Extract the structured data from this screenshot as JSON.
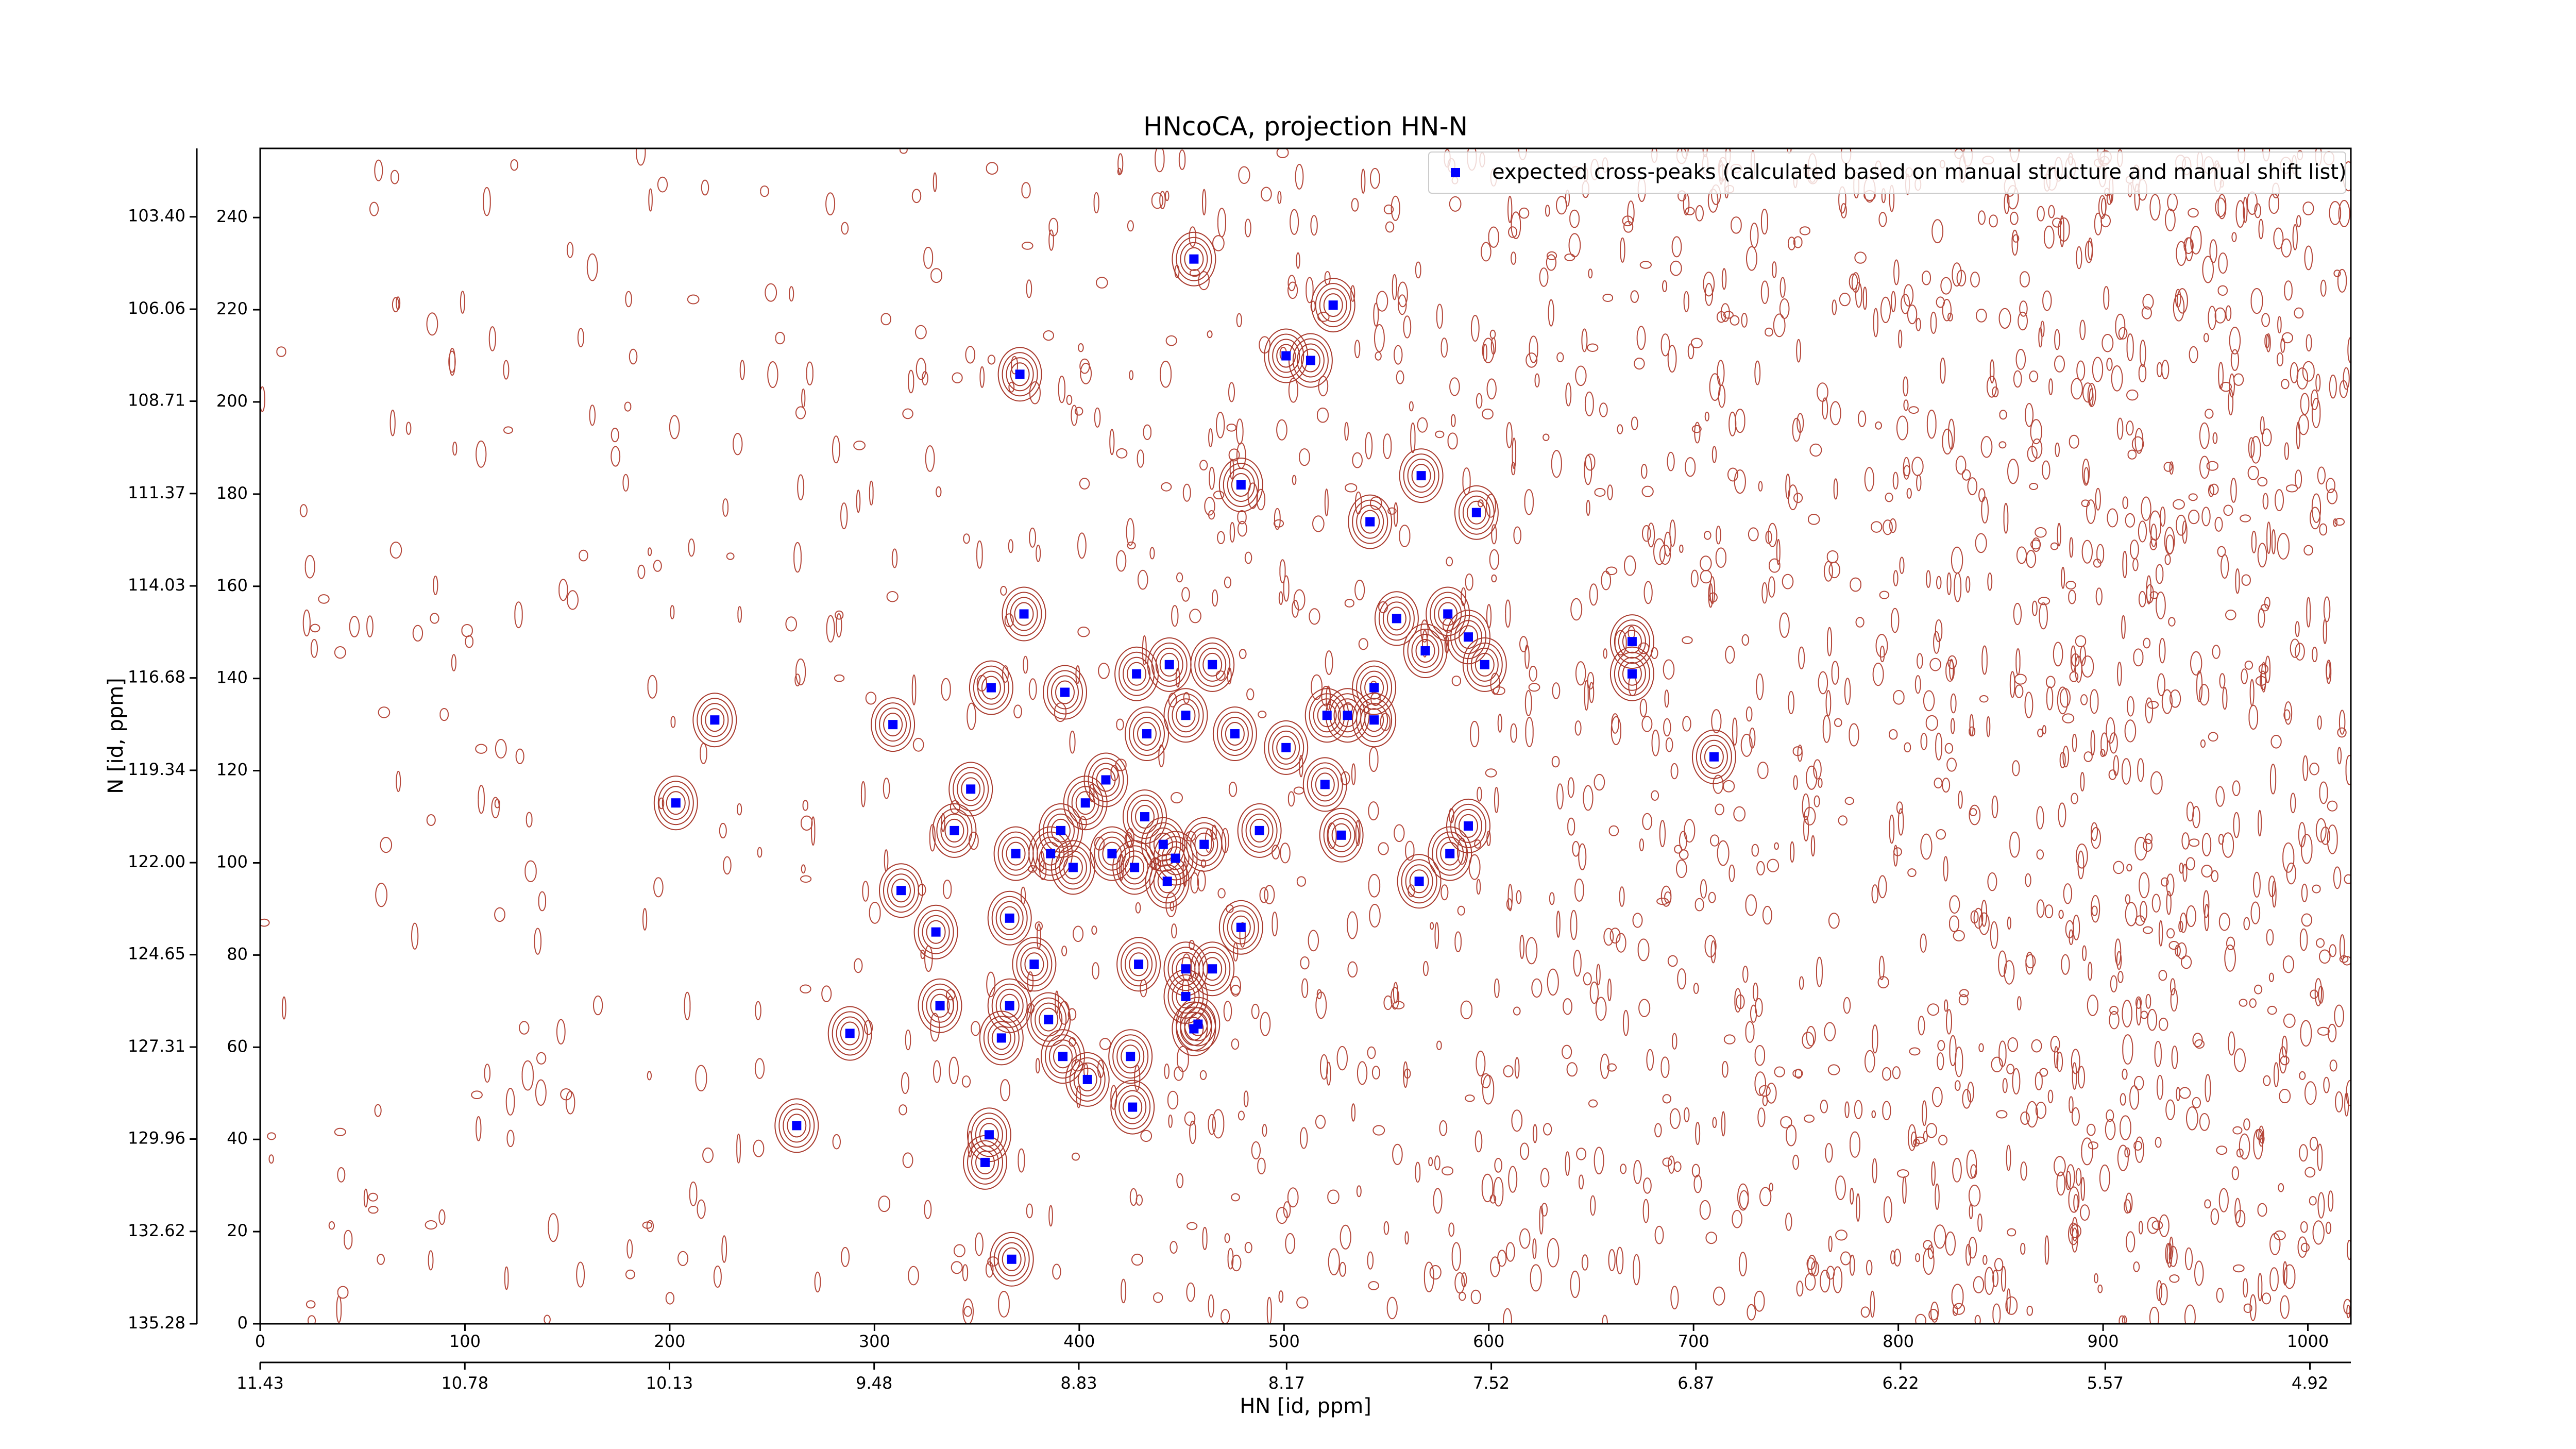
{
  "chart_data": {
    "type": "scatter",
    "title": "HNcoCA, projection HN-N",
    "x_label": "HN [id, ppm]",
    "y_label": "N [id, ppm]",
    "x": [
      456,
      524,
      501,
      513,
      371,
      479,
      567,
      594,
      542,
      373,
      555,
      580,
      590,
      569,
      670,
      598,
      670,
      444,
      465,
      428,
      357,
      393,
      544,
      452,
      521,
      531,
      544,
      309,
      222,
      433,
      476,
      501,
      710,
      413,
      520,
      347,
      403,
      203,
      432,
      339,
      391,
      488,
      590,
      528,
      441,
      461,
      369,
      386,
      416,
      447,
      581,
      397,
      427,
      443,
      566,
      313,
      366,
      479,
      330,
      429,
      378,
      452,
      465,
      452,
      332,
      366,
      385,
      458,
      456,
      288,
      362,
      392,
      425,
      404,
      426,
      262,
      356,
      354,
      367
    ],
    "series": [
      {
        "name": "expected cross-peaks (calculated based on manual structure and manual shift list)",
        "color": "#0000ff",
        "values": [
          231,
          221,
          210,
          209,
          206,
          182,
          184,
          176,
          174,
          154,
          153,
          154,
          149,
          146,
          148,
          143,
          141,
          143,
          143,
          141,
          138,
          137,
          138,
          132,
          132,
          132,
          131,
          130,
          131,
          128,
          128,
          125,
          123,
          118,
          117,
          116,
          113,
          113,
          110,
          107,
          107,
          107,
          108,
          106,
          104,
          104,
          102,
          102,
          102,
          101,
          102,
          99,
          99,
          96,
          96,
          94,
          88,
          86,
          85,
          78,
          78,
          77,
          77,
          71,
          69,
          69,
          66,
          65,
          64,
          63,
          62,
          58,
          58,
          53,
          47,
          43,
          41,
          35,
          14
        ]
      }
    ],
    "xlim": [
      0,
      1021
    ],
    "ylim": [
      0,
      255
    ],
    "xticks": [
      0,
      100,
      200,
      300,
      400,
      500,
      600,
      700,
      800,
      900,
      1000
    ],
    "yticks": [
      0,
      20,
      40,
      60,
      80,
      100,
      120,
      140,
      160,
      180,
      200,
      220,
      240
    ],
    "x2lim": [
      11.43,
      4.79
    ],
    "x2ticks": [
      11.43,
      10.78,
      10.13,
      9.48,
      8.83,
      8.17,
      7.52,
      6.87,
      6.22,
      5.57,
      4.92
    ],
    "y2lim": [
      135.28,
      101.43
    ],
    "y2ticks": [
      135.28,
      132.62,
      129.96,
      127.31,
      124.65,
      {
        "value": 122,
        "label": "122.00"
      },
      119.34,
      116.68,
      114.03,
      111.37,
      108.71,
      106.06,
      {
        "value": 103.4,
        "label": "103.40"
      }
    ],
    "legend": "upper right"
  }
}
